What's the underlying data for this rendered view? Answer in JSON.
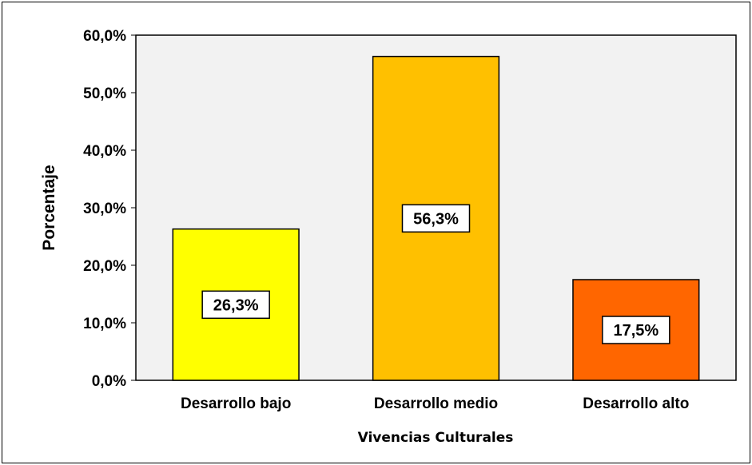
{
  "chart_data": {
    "type": "bar",
    "title": "",
    "xlabel": "Vivencias Culturales",
    "ylabel": "Porcentaje",
    "ylim": [
      0,
      60
    ],
    "yticks": [
      "0,0%",
      "10,0%",
      "20,0%",
      "30,0%",
      "40,0%",
      "50,0%",
      "60,0%"
    ],
    "categories": [
      "Desarrollo bajo",
      "Desarrollo medio",
      "Desarrollo alto"
    ],
    "values": [
      26.3,
      56.3,
      17.5
    ],
    "data_labels": [
      "26,3%",
      "56,3%",
      "17,5%"
    ],
    "colors": [
      "#ffff00",
      "#ffc000",
      "#ff6600"
    ],
    "plot_background": "#f2f2f2",
    "grid": false,
    "legend": "none"
  }
}
